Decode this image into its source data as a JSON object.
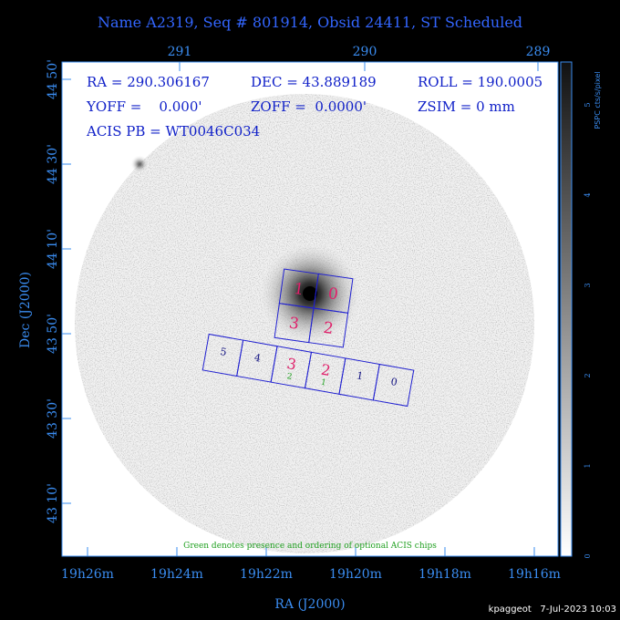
{
  "header": {
    "title": "Name A2319, Seq # 801914, Obsid 24411, ST Scheduled"
  },
  "info": {
    "ra": "RA = 290.306167",
    "dec": "DEC = 43.889189",
    "roll": "ROLL = 190.0005",
    "yoff": "YOFF =    0.000'",
    "zoff": "ZOFF =  0.0000'",
    "zsim": "ZSIM = 0 mm",
    "pb": "ACIS PB = WT0046C034"
  },
  "top_axis": {
    "labels": [
      "291",
      "290",
      "289"
    ]
  },
  "left_axis": {
    "title": "Dec (J2000)",
    "labels": [
      "44 50'",
      "44 30'",
      "44 10'",
      "43 50'",
      "43 30'",
      "43 10'"
    ]
  },
  "bottom_axis": {
    "title": "RA (J2000)",
    "labels": [
      "19h26m",
      "19h24m",
      "19h22m",
      "19h20m",
      "19h18m",
      "19h16m"
    ]
  },
  "colorbar": {
    "title": "PSPC cts/s/pixel",
    "labels": [
      "0",
      "1",
      "2",
      "3",
      "4",
      "5"
    ]
  },
  "i_array": {
    "labels": [
      "1",
      "0",
      "3",
      "2"
    ]
  },
  "s_array": {
    "labels": [
      "5",
      "4",
      "3",
      "2",
      "1",
      "0"
    ],
    "optional": [
      "2",
      "1"
    ]
  },
  "footnote": "Green denotes presence and ordering of optional ACIS chips",
  "footer": "kpaggeot   7-Jul-2023 10:03"
}
